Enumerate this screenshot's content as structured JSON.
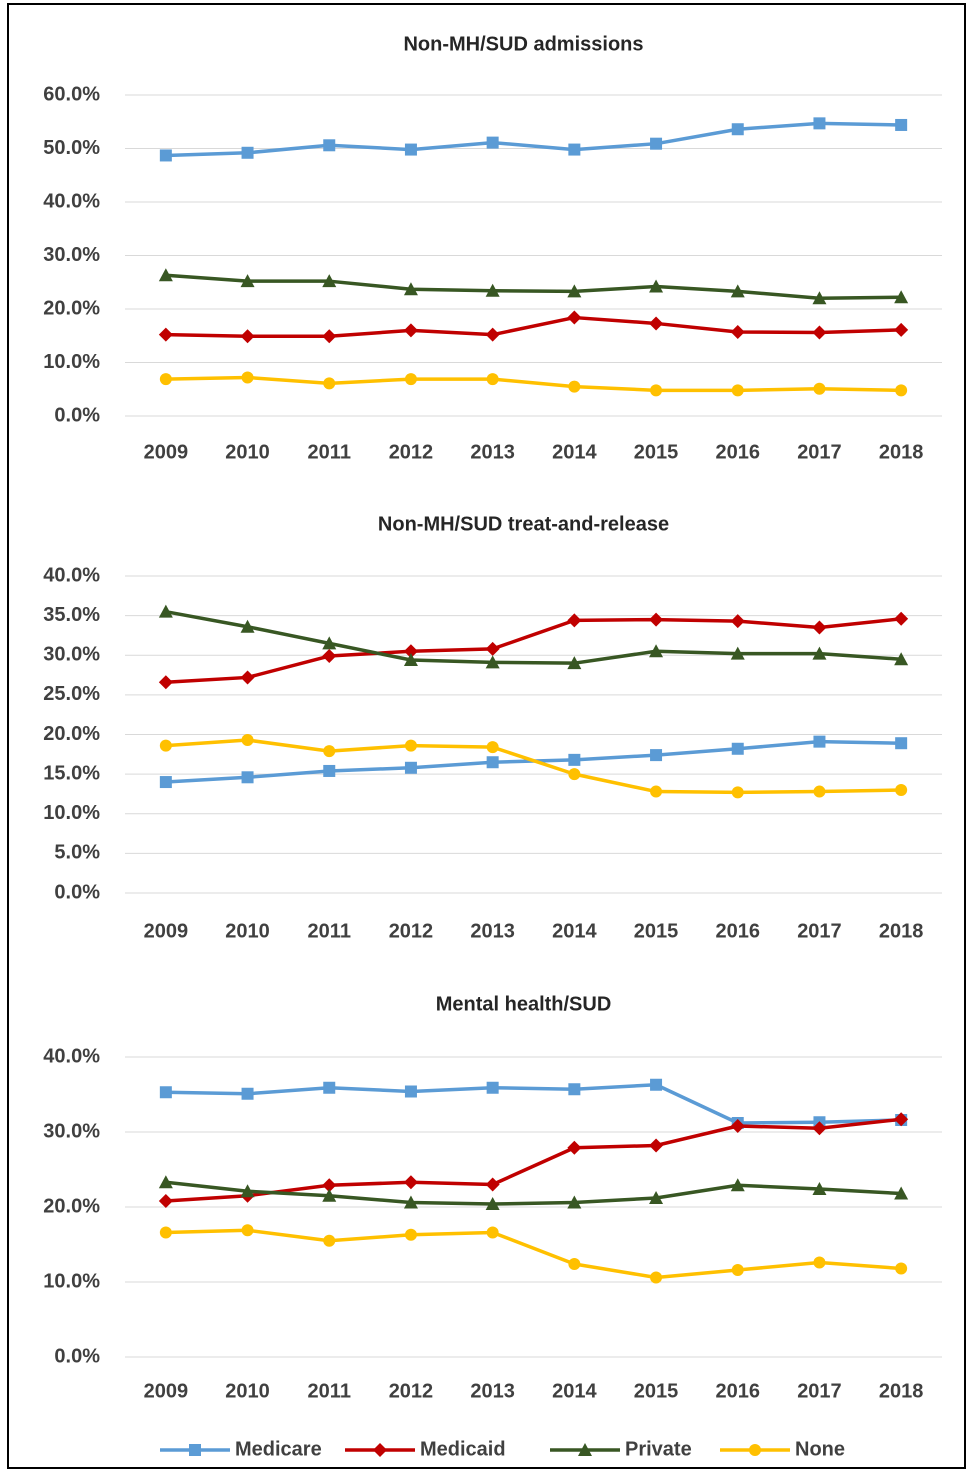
{
  "chart_data": [
    {
      "type": "line",
      "title": "Non-MH/SUD admissions",
      "categories": [
        "2009",
        "2010",
        "2011",
        "2012",
        "2013",
        "2014",
        "2015",
        "2016",
        "2017",
        "2018"
      ],
      "ylim": [
        0,
        60
      ],
      "yticks": [
        {
          "value": 0,
          "label": "0.0%"
        },
        {
          "value": 10,
          "label": "10.0%"
        },
        {
          "value": 20,
          "label": "20.0%"
        },
        {
          "value": 30,
          "label": "30.0%"
        },
        {
          "value": 40,
          "label": "40.0%"
        },
        {
          "value": 50,
          "label": "50.0%"
        },
        {
          "value": 60,
          "label": "60.0%"
        }
      ],
      "grid": true,
      "series": [
        {
          "name": "Medicare",
          "color": "#5b9bd5",
          "marker": "square",
          "values": [
            48.7,
            49.2,
            50.6,
            49.8,
            51.1,
            49.8,
            50.9,
            53.6,
            54.7,
            54.4
          ]
        },
        {
          "name": "Medicaid",
          "color": "#c00000",
          "marker": "diamond",
          "values": [
            15.2,
            14.9,
            14.9,
            16.0,
            15.2,
            18.4,
            17.3,
            15.7,
            15.6,
            16.1
          ]
        },
        {
          "name": "Private",
          "color": "#385723",
          "marker": "triangle",
          "values": [
            26.3,
            25.2,
            25.2,
            23.7,
            23.4,
            23.3,
            24.2,
            23.3,
            22.0,
            22.2
          ]
        },
        {
          "name": "None",
          "color": "#ffc000",
          "marker": "circle",
          "values": [
            6.9,
            7.2,
            6.1,
            6.9,
            6.9,
            5.5,
            4.8,
            4.8,
            5.1,
            4.8
          ]
        }
      ]
    },
    {
      "type": "line",
      "title": "Non-MH/SUD treat-and-release",
      "categories": [
        "2009",
        "2010",
        "2011",
        "2012",
        "2013",
        "2014",
        "2015",
        "2016",
        "2017",
        "2018"
      ],
      "ylim": [
        0,
        40
      ],
      "yticks": [
        {
          "value": 0,
          "label": "0.0%"
        },
        {
          "value": 5,
          "label": "5.0%"
        },
        {
          "value": 10,
          "label": "10.0%"
        },
        {
          "value": 15,
          "label": "15.0%"
        },
        {
          "value": 20,
          "label": "20.0%"
        },
        {
          "value": 25,
          "label": "25.0%"
        },
        {
          "value": 30,
          "label": "30.0%"
        },
        {
          "value": 35,
          "label": "35.0%"
        },
        {
          "value": 40,
          "label": "40.0%"
        }
      ],
      "grid": true,
      "series": [
        {
          "name": "Medicare",
          "color": "#5b9bd5",
          "marker": "square",
          "values": [
            14.0,
            14.6,
            15.4,
            15.8,
            16.5,
            16.8,
            17.4,
            18.2,
            19.1,
            18.9
          ]
        },
        {
          "name": "Medicaid",
          "color": "#c00000",
          "marker": "diamond",
          "values": [
            26.6,
            27.2,
            29.9,
            30.5,
            30.8,
            34.4,
            34.5,
            34.3,
            33.5,
            34.6
          ]
        },
        {
          "name": "Private",
          "color": "#385723",
          "marker": "triangle",
          "values": [
            35.5,
            33.6,
            31.5,
            29.4,
            29.1,
            29.0,
            30.5,
            30.2,
            30.2,
            29.5
          ]
        },
        {
          "name": "None",
          "color": "#ffc000",
          "marker": "circle",
          "values": [
            18.6,
            19.3,
            17.9,
            18.6,
            18.4,
            15.0,
            12.8,
            12.7,
            12.8,
            13.0
          ]
        }
      ]
    },
    {
      "type": "line",
      "title": "Mental health/SUD",
      "categories": [
        "2009",
        "2010",
        "2011",
        "2012",
        "2013",
        "2014",
        "2015",
        "2016",
        "2017",
        "2018"
      ],
      "ylim": [
        0,
        40
      ],
      "yticks": [
        {
          "value": 0,
          "label": "0.0%"
        },
        {
          "value": 10,
          "label": "10.0%"
        },
        {
          "value": 20,
          "label": "20.0%"
        },
        {
          "value": 30,
          "label": "30.0%"
        },
        {
          "value": 40,
          "label": "40.0%"
        }
      ],
      "grid": true,
      "series": [
        {
          "name": "Medicare",
          "color": "#5b9bd5",
          "marker": "square",
          "values": [
            35.3,
            35.1,
            35.9,
            35.4,
            35.9,
            35.7,
            36.3,
            31.2,
            31.3,
            31.6
          ]
        },
        {
          "name": "Medicaid",
          "color": "#c00000",
          "marker": "diamond",
          "values": [
            20.8,
            21.5,
            22.9,
            23.3,
            23.0,
            27.9,
            28.2,
            30.8,
            30.5,
            31.7
          ]
        },
        {
          "name": "Private",
          "color": "#385723",
          "marker": "triangle",
          "values": [
            23.3,
            22.1,
            21.5,
            20.6,
            20.4,
            20.6,
            21.2,
            22.9,
            22.4,
            21.8
          ]
        },
        {
          "name": "None",
          "color": "#ffc000",
          "marker": "circle",
          "values": [
            16.6,
            16.9,
            15.5,
            16.3,
            16.6,
            12.4,
            10.6,
            11.6,
            12.6,
            11.8
          ]
        }
      ]
    }
  ]
}
